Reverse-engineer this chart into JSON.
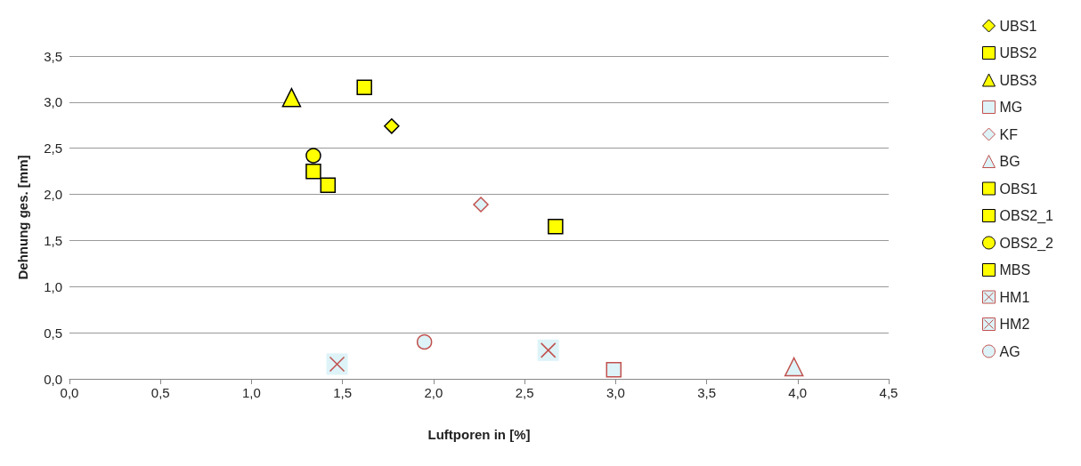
{
  "chart_data": {
    "type": "scatter",
    "xlabel": "Luftporen in [%]",
    "ylabel": "Dehnung ges. [mm]",
    "xlim": [
      0,
      4.5
    ],
    "ylim": [
      0,
      3.5
    ],
    "xticks": [
      {
        "value": 0,
        "label": "0,0"
      },
      {
        "value": 0.5,
        "label": "0,5"
      },
      {
        "value": 1,
        "label": "1,0"
      },
      {
        "value": 1.5,
        "label": "1,5"
      },
      {
        "value": 2,
        "label": "2,0"
      },
      {
        "value": 2.5,
        "label": "2,5"
      },
      {
        "value": 3,
        "label": "3,0"
      },
      {
        "value": 3.5,
        "label": "3,5"
      },
      {
        "value": 4,
        "label": "4,0"
      },
      {
        "value": 4.5,
        "label": "4,5"
      }
    ],
    "yticks": [
      {
        "value": 0,
        "label": "0,0"
      },
      {
        "value": 0.5,
        "label": "0,5"
      },
      {
        "value": 1,
        "label": "1,0"
      },
      {
        "value": 1.5,
        "label": "1,5"
      },
      {
        "value": 2,
        "label": "2,0"
      },
      {
        "value": 2.5,
        "label": "2,5"
      },
      {
        "value": 3,
        "label": "3,0"
      },
      {
        "value": 3.5,
        "label": "3,5"
      }
    ],
    "grid": "y",
    "legend": "right",
    "series": [
      {
        "name": "UBS1",
        "color": "#ffff00",
        "marker": "diamond",
        "x": [
          1.77
        ],
        "values": [
          2.74
        ]
      },
      {
        "name": "UBS2",
        "color": "#ffff00",
        "marker": "square",
        "x": [
          1.62
        ],
        "values": [
          3.16
        ]
      },
      {
        "name": "UBS3",
        "color": "#ffff00",
        "marker": "triangle",
        "x": [
          1.22
        ],
        "values": [
          3.05
        ]
      },
      {
        "name": "MG",
        "color": "#c0504d",
        "marker": "square",
        "x": [
          2.99
        ],
        "values": [
          0.1
        ]
      },
      {
        "name": "KF",
        "color": "#c0504d",
        "marker": "diamond",
        "x": [
          2.26
        ],
        "values": [
          1.89
        ]
      },
      {
        "name": "BG",
        "color": "#c0504d",
        "marker": "triangle",
        "x": [
          3.98
        ],
        "values": [
          0.13
        ]
      },
      {
        "name": "OBS1",
        "color": "#ffff00",
        "marker": "square",
        "x": [
          1.42
        ],
        "values": [
          2.1
        ]
      },
      {
        "name": "OBS2_1",
        "color": "#ffff00",
        "marker": "square",
        "x": [
          1.34
        ],
        "values": [
          2.25
        ]
      },
      {
        "name": "OBS2_2",
        "color": "#ffff00",
        "marker": "circle",
        "x": [
          1.34
        ],
        "values": [
          2.42
        ]
      },
      {
        "name": "MBS",
        "color": "#ffff00",
        "marker": "square",
        "x": [
          2.67
        ],
        "values": [
          1.65
        ]
      },
      {
        "name": "HM1",
        "color": "#c0504d",
        "marker": "cross",
        "x": [
          2.63
        ],
        "values": [
          0.31
        ]
      },
      {
        "name": "HM2",
        "color": "#c0504d",
        "marker": "cross",
        "x": [
          1.47
        ],
        "values": [
          0.16
        ]
      },
      {
        "name": "AG",
        "color": "#c0504d",
        "marker": "circle",
        "x": [
          1.95
        ],
        "values": [
          0.4
        ]
      }
    ]
  }
}
